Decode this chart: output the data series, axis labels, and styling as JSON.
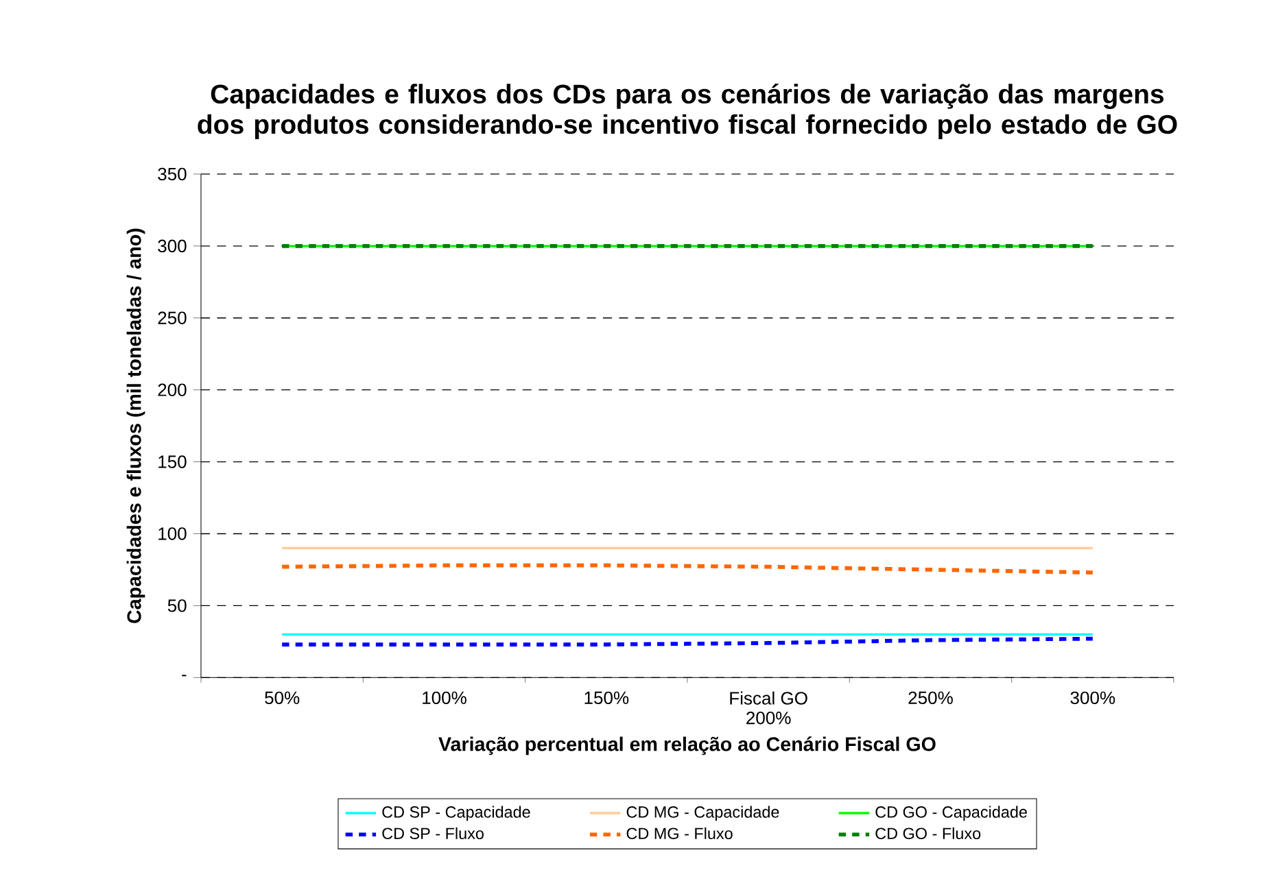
{
  "chart_data": {
    "type": "line",
    "title": "Capacidades e fluxos dos CDs para os cenários de variação das margens dos produtos considerando-se incentivo fiscal fornecido pelo estado de GO",
    "xlabel": "Variação percentual em relação ao Cenário Fiscal GO",
    "ylabel": "Capacidades e fluxos (mil toneladas / ano)",
    "categories": [
      "50%",
      "100%",
      "150%",
      "Fiscal GO\n200%",
      "250%",
      "300%"
    ],
    "ylim": [
      0,
      350
    ],
    "yticks": [
      {
        "value": 0,
        "label": "-"
      },
      50,
      100,
      150,
      200,
      250,
      300,
      350
    ],
    "grid": "y",
    "legend": "bottom",
    "marker": "none",
    "series": [
      {
        "name": "CD SP - Capacidade",
        "color": "#00ffff",
        "line_style": "solid",
        "values": [
          30,
          30,
          30,
          30,
          30,
          30
        ]
      },
      {
        "name": "CD MG - Capacidade",
        "color": "#ffcc99",
        "line_style": "solid",
        "values": [
          90,
          90,
          90,
          90,
          90,
          90
        ]
      },
      {
        "name": "CD GO - Capacidade",
        "color": "#00ff00",
        "line_style": "solid",
        "values": [
          300,
          300,
          300,
          300,
          300,
          300
        ]
      },
      {
        "name": "CD SP - Fluxo",
        "color": "#0000ff",
        "line_style": "dashed",
        "values": [
          23,
          23,
          23,
          24,
          26,
          27
        ]
      },
      {
        "name": "CD MG - Fluxo",
        "color": "#ff6600",
        "line_style": "dashed",
        "values": [
          77,
          78,
          78,
          77,
          75,
          73
        ]
      },
      {
        "name": "CD GO - Fluxo",
        "color": "#008000",
        "line_style": "dashed",
        "values": [
          300,
          300,
          300,
          300,
          300,
          300
        ]
      }
    ]
  }
}
